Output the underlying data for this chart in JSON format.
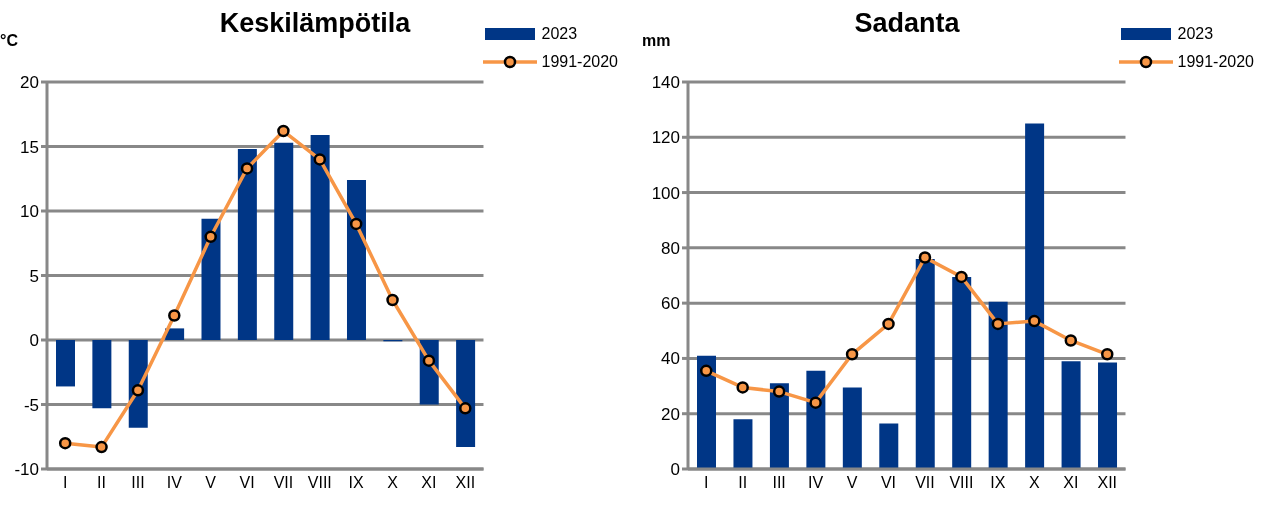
{
  "chart_data": [
    {
      "type": "bar",
      "title": "Keskilämpötila",
      "ylabel": "°C",
      "categories": [
        "I",
        "II",
        "III",
        "IV",
        "V",
        "VI",
        "VII",
        "VIII",
        "IX",
        "X",
        "XI",
        "XII"
      ],
      "series": [
        {
          "name": "2023",
          "color": "#003686",
          "values": [
            -3.6,
            -5.3,
            -6.8,
            0.9,
            9.4,
            14.8,
            15.3,
            15.9,
            12.4,
            -0.1,
            -5.0,
            -8.3
          ]
        },
        {
          "name": "1991-2020",
          "type": "line",
          "color": "#f79646",
          "marker": "circle",
          "values": [
            -8.0,
            -8.3,
            -3.9,
            1.9,
            8.0,
            13.3,
            16.2,
            14.0,
            9.0,
            3.1,
            -1.6,
            -5.3
          ]
        }
      ],
      "ylim": [
        -10,
        20
      ],
      "yticks": [
        -10,
        -5,
        0,
        5,
        10,
        15,
        20
      ],
      "grid": "y",
      "legend": "top right"
    },
    {
      "type": "bar",
      "title": "Sadanta",
      "ylabel": "mm",
      "categories": [
        "I",
        "II",
        "III",
        "IV",
        "V",
        "VI",
        "VII",
        "VIII",
        "IX",
        "X",
        "XI",
        "XII"
      ],
      "series": [
        {
          "name": "2023",
          "color": "#003686",
          "values": [
            41,
            18,
            31,
            35.5,
            29.5,
            16.5,
            76,
            69.5,
            60.5,
            125,
            39,
            38.5
          ]
        },
        {
          "name": "1991-2020",
          "type": "line",
          "color": "#f79646",
          "marker": "circle",
          "values": [
            35.5,
            29.5,
            28,
            24,
            41.5,
            52.5,
            76.5,
            69.5,
            52.5,
            53.5,
            46.5,
            41.5
          ]
        }
      ],
      "ylim": [
        0,
        140
      ],
      "yticks": [
        0,
        20,
        40,
        60,
        80,
        100,
        120,
        140
      ],
      "grid": "y",
      "legend": "top right"
    }
  ]
}
